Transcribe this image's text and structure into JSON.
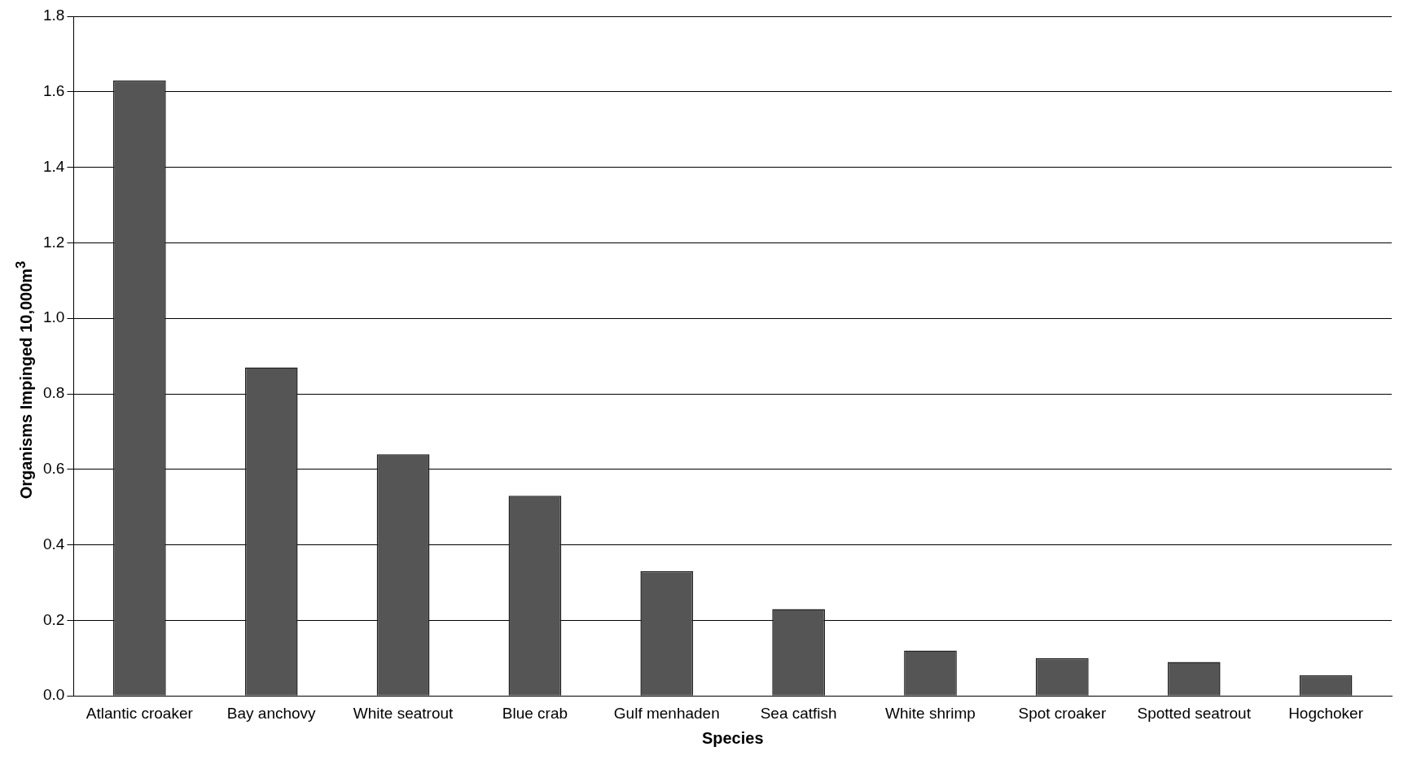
{
  "chart_data": {
    "type": "bar",
    "xlabel": "Species",
    "ylabel": "Organisms Impinged 10,000m$^{3}$",
    "categories": [
      "Atlantic croaker",
      "Bay anchovy",
      "White seatrout",
      "Blue crab",
      "Gulf menhaden",
      "Sea catfish",
      "White shrimp",
      "Spot croaker",
      "Spotted seatrout",
      "Hogchoker"
    ],
    "values": [
      1.63,
      0.87,
      0.64,
      0.53,
      0.33,
      0.23,
      0.12,
      0.1,
      0.09,
      0.055
    ],
    "color": "#555555",
    "ylim": [
      0,
      1.8
    ],
    "yticks": [
      {
        "value": 0,
        "label": "0.0"
      },
      {
        "value": 0.2,
        "label": "0.2"
      },
      {
        "value": 0.4,
        "label": "0.4"
      },
      {
        "value": 0.6,
        "label": "0.6"
      },
      {
        "value": 0.8,
        "label": "0.8"
      },
      {
        "value": 1,
        "label": "1.0"
      },
      {
        "value": 1.2,
        "label": "1.2"
      },
      {
        "value": 1.4,
        "label": "1.4"
      },
      {
        "value": 1.6,
        "label": "1.6"
      },
      {
        "value": 1.8,
        "label": "1.8"
      }
    ],
    "grid": "y",
    "legend": false
  }
}
